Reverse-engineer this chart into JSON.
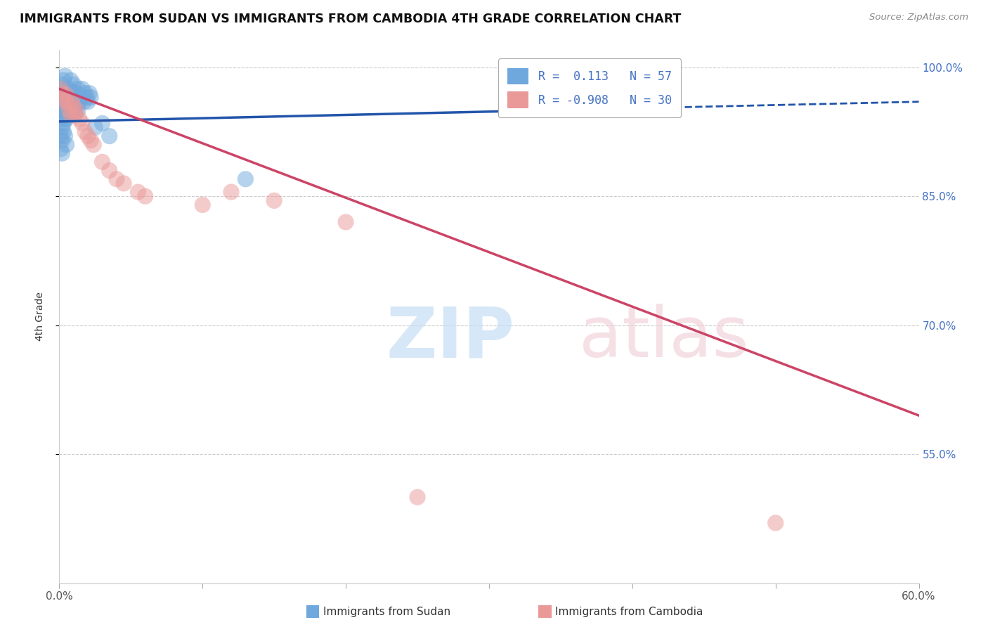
{
  "title": "IMMIGRANTS FROM SUDAN VS IMMIGRANTS FROM CAMBODIA 4TH GRADE CORRELATION CHART",
  "source": "Source: ZipAtlas.com",
  "ylabel": "4th Grade",
  "xlim": [
    0.0,
    0.6
  ],
  "ylim": [
    0.4,
    1.02
  ],
  "xtick_vals": [
    0.0,
    0.1,
    0.2,
    0.3,
    0.4,
    0.5,
    0.6
  ],
  "xticklabels": [
    "0.0%",
    "",
    "",
    "",
    "",
    "",
    "60.0%"
  ],
  "ytick_vals": [
    0.55,
    0.7,
    0.85,
    1.0
  ],
  "yticklabels_right": [
    "55.0%",
    "70.0%",
    "85.0%",
    "100.0%"
  ],
  "sudan_color": "#6fa8dc",
  "cambodia_color": "#ea9999",
  "sudan_line_color": "#2255aa",
  "cambodia_line_color": "#cc4466",
  "sudan_R": 0.113,
  "sudan_N": 57,
  "cambodia_R": -0.908,
  "cambodia_N": 30,
  "background_color": "#ffffff",
  "grid_color": "#cccccc",
  "sudan_x": [
    0.001,
    0.002,
    0.002,
    0.003,
    0.003,
    0.004,
    0.004,
    0.005,
    0.005,
    0.006,
    0.006,
    0.007,
    0.007,
    0.008,
    0.008,
    0.009,
    0.01,
    0.01,
    0.011,
    0.012,
    0.013,
    0.014,
    0.015,
    0.016,
    0.017,
    0.018,
    0.019,
    0.02,
    0.021,
    0.022,
    0.001,
    0.002,
    0.003,
    0.004,
    0.005,
    0.006,
    0.007,
    0.008,
    0.009,
    0.01,
    0.011,
    0.012,
    0.013,
    0.002,
    0.003,
    0.004,
    0.025,
    0.03,
    0.035,
    0.001,
    0.002,
    0.003,
    0.004,
    0.005,
    0.001,
    0.002,
    0.13
  ],
  "sudan_y": [
    0.975,
    0.98,
    0.96,
    0.97,
    0.985,
    0.965,
    0.99,
    0.975,
    0.955,
    0.97,
    0.96,
    0.975,
    0.95,
    0.965,
    0.985,
    0.96,
    0.97,
    0.98,
    0.965,
    0.97,
    0.975,
    0.96,
    0.965,
    0.975,
    0.96,
    0.97,
    0.965,
    0.96,
    0.97,
    0.965,
    0.95,
    0.94,
    0.945,
    0.955,
    0.94,
    0.95,
    0.945,
    0.955,
    0.95,
    0.955,
    0.945,
    0.955,
    0.95,
    0.93,
    0.935,
    0.94,
    0.93,
    0.935,
    0.92,
    0.92,
    0.915,
    0.925,
    0.92,
    0.91,
    0.905,
    0.9,
    0.87
  ],
  "cambodia_x": [
    0.001,
    0.002,
    0.003,
    0.004,
    0.005,
    0.006,
    0.007,
    0.008,
    0.009,
    0.01,
    0.011,
    0.012,
    0.014,
    0.016,
    0.018,
    0.02,
    0.022,
    0.024,
    0.03,
    0.035,
    0.04,
    0.045,
    0.055,
    0.06,
    0.1,
    0.12,
    0.15,
    0.2,
    0.25,
    0.5
  ],
  "cambodia_y": [
    0.975,
    0.97,
    0.965,
    0.96,
    0.968,
    0.958,
    0.95,
    0.945,
    0.96,
    0.955,
    0.945,
    0.95,
    0.94,
    0.935,
    0.925,
    0.92,
    0.915,
    0.91,
    0.89,
    0.88,
    0.87,
    0.865,
    0.855,
    0.85,
    0.84,
    0.855,
    0.845,
    0.82,
    0.5,
    0.47
  ],
  "sudan_line_x": [
    0.0,
    0.6
  ],
  "sudan_line_y": [
    0.937,
    0.96
  ],
  "cambodia_line_x": [
    0.0,
    0.6
  ],
  "cambodia_line_y": [
    0.975,
    0.595
  ]
}
